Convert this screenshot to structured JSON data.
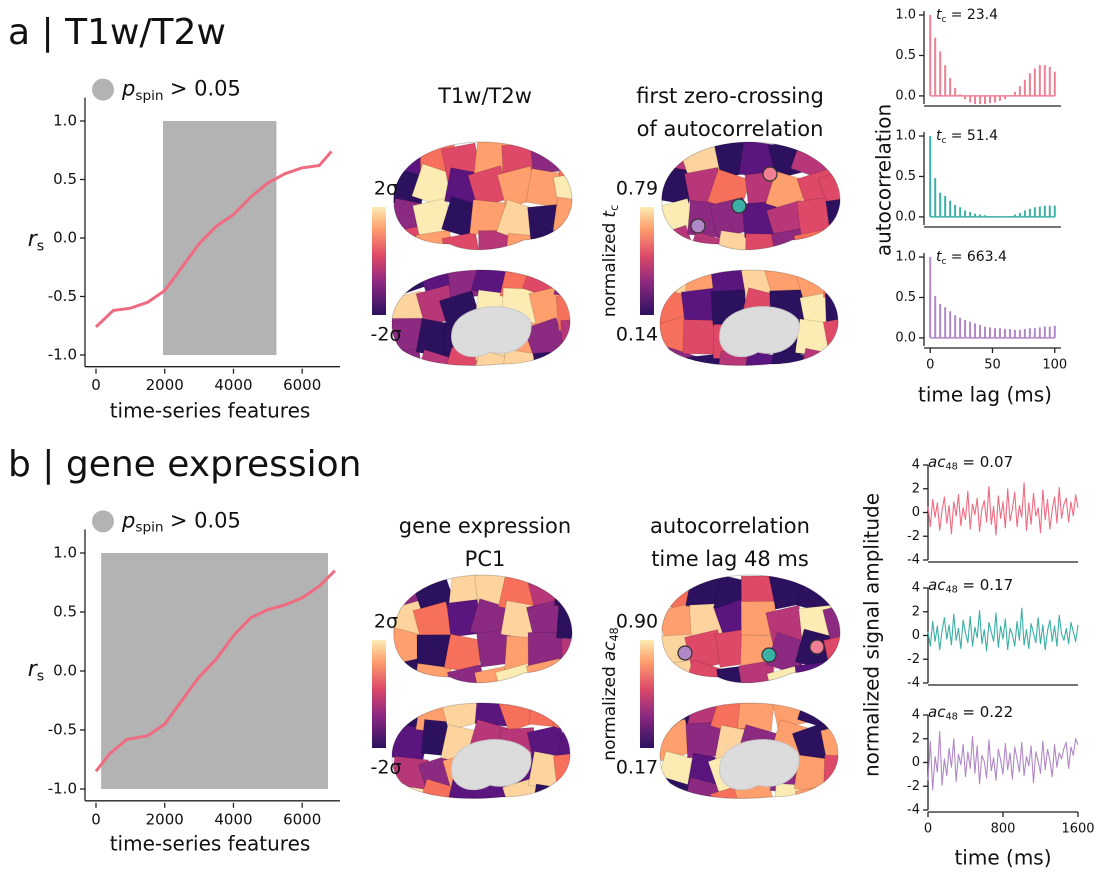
{
  "panels": [
    {
      "label": "a | T1w/T2w",
      "maps": [
        {
          "title": [
            "T1w/T2w"
          ],
          "colorbar": {
            "top": "2σ",
            "bottom": "-2σ"
          }
        },
        {
          "title": [
            "first zero-crossing",
            "of autocorrelation"
          ],
          "colorbar": {
            "top": "0.79",
            "bottom": "0.14",
            "label": {
              "prefix": "normalized",
              "symbol": "t",
              "subscript": "c"
            }
          }
        }
      ]
    },
    {
      "label": "b | gene expression",
      "maps": [
        {
          "title": [
            "gene expression",
            "PC1"
          ],
          "colorbar": {
            "top": "2σ",
            "bottom": "-2σ"
          }
        },
        {
          "title": [
            "autocorrelation",
            "time lag 48 ms"
          ],
          "colorbar": {
            "top": "0.90",
            "bottom": "0.17",
            "label": {
              "prefix": "normalized",
              "symbol": "ac",
              "subscript": "48"
            }
          }
        }
      ]
    }
  ],
  "chart_data": [
    {
      "type": "line",
      "color": "#ee6b80",
      "x": [
        0,
        500,
        1000,
        1500,
        2000,
        2500,
        3000,
        3500,
        4000,
        4500,
        5000,
        5500,
        6000,
        6500,
        6850
      ],
      "values": [
        -0.76,
        -0.62,
        -0.6,
        -0.55,
        -0.45,
        -0.25,
        -0.05,
        0.1,
        0.2,
        0.35,
        0.47,
        0.55,
        0.6,
        0.62,
        0.74
      ],
      "shade": {
        "x": [
          1950,
          5250
        ],
        "y": [
          -1,
          1
        ],
        "color": "#b3b3b3",
        "label": {
          "symbol": "p",
          "subscript": "spin",
          "suffix": "> 0.05"
        }
      },
      "xlim": [
        -320,
        7100
      ],
      "ylim": [
        -1.1,
        1.2
      ],
      "xticks": [
        0,
        2000,
        4000,
        6000
      ],
      "yticks": [
        {
          "value": 1,
          "label": "1.0"
        },
        0.5,
        {
          "value": 0,
          "label": "0.0"
        },
        -0.5,
        {
          "value": -1,
          "label": "-1.0"
        }
      ],
      "xlabel": "time-series features",
      "ylabel": {
        "symbol": "r",
        "subscript": "s"
      }
    },
    {
      "type": "line",
      "color": "#ee6b80",
      "x": [
        0,
        400,
        900,
        1500,
        2000,
        2500,
        3000,
        3500,
        4000,
        4500,
        5000,
        5500,
        6000,
        6500,
        6950
      ],
      "values": [
        -0.85,
        -0.7,
        -0.58,
        -0.55,
        -0.45,
        -0.25,
        -0.05,
        0.1,
        0.3,
        0.45,
        0.52,
        0.56,
        0.62,
        0.72,
        0.85
      ],
      "shade": {
        "x": [
          150,
          6750
        ],
        "y": [
          -1,
          1
        ],
        "color": "#b3b3b3",
        "label": {
          "symbol": "p",
          "subscript": "spin",
          "suffix": "> 0.05"
        }
      },
      "xlim": [
        -320,
        7100
      ],
      "ylim": [
        -1.1,
        1.2
      ],
      "xticks": [
        0,
        2000,
        4000,
        6000
      ],
      "yticks": [
        {
          "value": 1,
          "label": "1.0"
        },
        0.5,
        {
          "value": 0,
          "label": "0.0"
        },
        -0.5,
        {
          "value": -1,
          "label": "-1.0"
        }
      ],
      "xlabel": "time-series features",
      "ylabel": {
        "symbol": "r",
        "subscript": "s"
      }
    },
    {
      "type": "stem",
      "color": "#f07f93",
      "x": [
        0,
        4,
        8,
        12,
        16,
        20,
        24,
        28,
        32,
        36,
        40,
        44,
        48,
        52,
        56,
        60,
        64,
        68,
        72,
        76,
        80,
        84,
        88,
        92,
        96,
        100
      ],
      "values": [
        1.0,
        0.72,
        0.55,
        0.38,
        0.22,
        0.1,
        0.02,
        -0.04,
        -0.08,
        -0.1,
        -0.1,
        -0.1,
        -0.09,
        -0.08,
        -0.06,
        -0.04,
        0.0,
        0.05,
        0.12,
        0.2,
        0.28,
        0.34,
        0.38,
        0.38,
        0.36,
        0.3
      ],
      "annotation": {
        "symbol": "t",
        "subscript": "c",
        "suffix": "= 23.4"
      },
      "xlim": [
        -5,
        105
      ],
      "ylim": [
        -0.1,
        1.05
      ],
      "yticks": [
        {
          "value": 0,
          "label": "0.0"
        },
        0.5,
        {
          "value": 1,
          "label": "1.0"
        }
      ]
    },
    {
      "type": "stem",
      "color": "#3bb0a5",
      "x": [
        0,
        4,
        8,
        12,
        16,
        20,
        24,
        28,
        32,
        36,
        40,
        44,
        48,
        52,
        56,
        60,
        64,
        68,
        72,
        76,
        80,
        84,
        88,
        92,
        96,
        100
      ],
      "values": [
        1.0,
        0.48,
        0.3,
        0.26,
        0.2,
        0.15,
        0.12,
        0.08,
        0.06,
        0.04,
        0.03,
        0.02,
        0.01,
        0.01,
        0.0,
        0.0,
        0.01,
        0.03,
        0.05,
        0.08,
        0.1,
        0.12,
        0.13,
        0.14,
        0.14,
        0.14
      ],
      "annotation": {
        "symbol": "t",
        "subscript": "c",
        "suffix": "= 51.4"
      },
      "xlim": [
        -5,
        105
      ],
      "ylim": [
        -0.1,
        1.05
      ],
      "yticks": [
        {
          "value": 0,
          "label": "0.0"
        },
        0.5,
        {
          "value": 1,
          "label": "1.0"
        }
      ],
      "ylabel": "autocorrelation"
    },
    {
      "type": "stem",
      "color": "#b088c6",
      "x": [
        0,
        4,
        8,
        12,
        16,
        20,
        24,
        28,
        32,
        36,
        40,
        44,
        48,
        52,
        56,
        60,
        64,
        68,
        72,
        76,
        80,
        84,
        88,
        92,
        96,
        100
      ],
      "values": [
        1.0,
        0.52,
        0.42,
        0.38,
        0.33,
        0.28,
        0.25,
        0.22,
        0.2,
        0.18,
        0.16,
        0.14,
        0.13,
        0.12,
        0.12,
        0.11,
        0.11,
        0.1,
        0.1,
        0.11,
        0.12,
        0.12,
        0.13,
        0.14,
        0.14,
        0.15
      ],
      "annotation": {
        "symbol": "t",
        "subscript": "c",
        "suffix": "= 663.4"
      },
      "xlim": [
        -5,
        105
      ],
      "ylim": [
        -0.1,
        1.05
      ],
      "xticks": [
        0,
        50,
        100
      ],
      "yticks": [
        {
          "value": 0,
          "label": "0.0"
        },
        0.5,
        {
          "value": 1,
          "label": "1.0"
        }
      ],
      "xlabel": "time lag (ms)"
    },
    {
      "type": "line",
      "color": "#ee6b80",
      "x": [
        0,
        25,
        50,
        75,
        100,
        125,
        150,
        175,
        200,
        225,
        250,
        275,
        300,
        325,
        350,
        375,
        400,
        425,
        450,
        475,
        500,
        525,
        550,
        575,
        600,
        625,
        650,
        675,
        700,
        725,
        750,
        775,
        800,
        825,
        850,
        875,
        900,
        925,
        950,
        975,
        1000,
        1025,
        1050,
        1075,
        1100,
        1125,
        1150,
        1175,
        1200,
        1225,
        1250,
        1275,
        1300,
        1325,
        1350,
        1375,
        1400,
        1425,
        1450,
        1475,
        1500,
        1525,
        1550,
        1575,
        1600
      ],
      "values": [
        0.5,
        -1.2,
        1.1,
        -0.4,
        0.8,
        -1.5,
        0.2,
        1.3,
        -0.9,
        0.6,
        -1.8,
        0.9,
        -0.3,
        1.5,
        -1.1,
        0.4,
        -0.6,
        1.8,
        -1.4,
        0.7,
        -0.2,
        1.2,
        -1.6,
        0.3,
        1.0,
        -0.8,
        2.2,
        -1.0,
        0.5,
        -1.9,
        1.4,
        -0.5,
        0.9,
        -1.3,
        2.0,
        -0.7,
        0.3,
        1.7,
        -1.2,
        0.6,
        -0.4,
        2.5,
        -1.5,
        0.8,
        -1.0,
        1.6,
        -0.3,
        0.4,
        -1.7,
        1.9,
        -0.6,
        1.1,
        -1.4,
        0.2,
        1.3,
        -0.9,
        2.1,
        -0.5,
        0.7,
        1.2,
        -0.8,
        0.9,
        -0.3,
        1.5,
        0.4
      ],
      "annotation": {
        "symbol": "ac",
        "subscript": "48",
        "suffix": "= 0.07"
      },
      "xlim": [
        0,
        1600
      ],
      "ylim": [
        -4,
        4
      ],
      "yticks": [
        -4,
        -2,
        0,
        2,
        4
      ]
    },
    {
      "type": "line",
      "color": "#3bb0a5",
      "x": [
        0,
        25,
        50,
        75,
        100,
        125,
        150,
        175,
        200,
        225,
        250,
        275,
        300,
        325,
        350,
        375,
        400,
        425,
        450,
        475,
        500,
        525,
        550,
        575,
        600,
        625,
        650,
        675,
        700,
        725,
        750,
        775,
        800,
        825,
        850,
        875,
        900,
        925,
        950,
        975,
        1000,
        1025,
        1050,
        1075,
        1100,
        1125,
        1150,
        1175,
        1200,
        1225,
        1250,
        1275,
        1300,
        1325,
        1350,
        1375,
        1400,
        1425,
        1450,
        1475,
        1500,
        1525,
        1550,
        1575,
        1600
      ],
      "values": [
        0.3,
        -0.9,
        1.2,
        -0.5,
        0.8,
        -1.2,
        0.4,
        1.5,
        -0.3,
        0.9,
        -0.8,
        1.8,
        -0.4,
        0.6,
        -1.1,
        1.3,
        0.2,
        -0.6,
        1.6,
        -0.9,
        0.7,
        -0.2,
        2.1,
        -0.7,
        0.5,
        -1.3,
        1.1,
        0.3,
        -0.5,
        1.9,
        -1.0,
        0.8,
        -0.3,
        1.4,
        -1.2,
        0.6,
        0.1,
        -0.9,
        1.2,
        -0.4,
        2.3,
        -0.8,
        0.5,
        -1.1,
        1.0,
        0.2,
        -0.6,
        1.5,
        -0.7,
        0.9,
        -1.2,
        0.4,
        1.3,
        -0.5,
        0.8,
        -0.9,
        1.7,
        0.1,
        -0.4,
        0.6,
        -0.7,
        1.1,
        0.3,
        -0.5,
        0.9
      ],
      "annotation": {
        "symbol": "ac",
        "subscript": "48",
        "suffix": "= 0.17"
      },
      "xlim": [
        0,
        1600
      ],
      "ylim": [
        -4,
        4
      ],
      "yticks": [
        -4,
        -2,
        0,
        2,
        4
      ],
      "ylabel": "normalized signal amplitude"
    },
    {
      "type": "line",
      "color": "#b088c6",
      "x": [
        0,
        25,
        50,
        75,
        100,
        125,
        150,
        175,
        200,
        225,
        250,
        275,
        300,
        325,
        350,
        375,
        400,
        425,
        450,
        475,
        500,
        525,
        550,
        575,
        600,
        625,
        650,
        675,
        700,
        725,
        750,
        775,
        800,
        825,
        850,
        875,
        900,
        925,
        950,
        975,
        1000,
        1025,
        1050,
        1075,
        1100,
        1125,
        1150,
        1175,
        1200,
        1225,
        1250,
        1275,
        1300,
        1325,
        1350,
        1375,
        1400,
        1425,
        1450,
        1475,
        1500,
        1525,
        1550,
        1575,
        1600
      ],
      "values": [
        -1.5,
        1.8,
        -2.3,
        0.5,
        -0.8,
        2.6,
        -1.9,
        0.3,
        -1.1,
        1.2,
        -0.4,
        2.0,
        -1.6,
        0.7,
        -0.2,
        1.5,
        -1.2,
        0.9,
        -0.5,
        2.2,
        -0.9,
        1.4,
        -1.8,
        0.6,
        0.1,
        -1.3,
        1.9,
        -0.7,
        0.4,
        -1.5,
        1.1,
        0.2,
        -1.0,
        1.6,
        -0.6,
        0.8,
        -1.4,
        1.3,
        0.3,
        -0.8,
        1.7,
        -1.1,
        0.5,
        -0.3,
        1.4,
        -1.7,
        0.9,
        0.1,
        -0.9,
        1.8,
        -0.6,
        1.1,
        0.2,
        -1.2,
        1.5,
        -0.4,
        0.8,
        0.3,
        1.2,
        1.7,
        -0.5,
        1.3,
        0.6,
        2.0,
        1.5
      ],
      "annotation": {
        "symbol": "ac",
        "subscript": "48",
        "suffix": "= 0.22"
      },
      "xlim": [
        0,
        1600
      ],
      "ylim": [
        -4,
        4
      ],
      "yticks": [
        -4,
        -2,
        0,
        2,
        4
      ],
      "xticks": [
        0,
        800,
        1600
      ],
      "xlabel": "time (ms)"
    }
  ]
}
